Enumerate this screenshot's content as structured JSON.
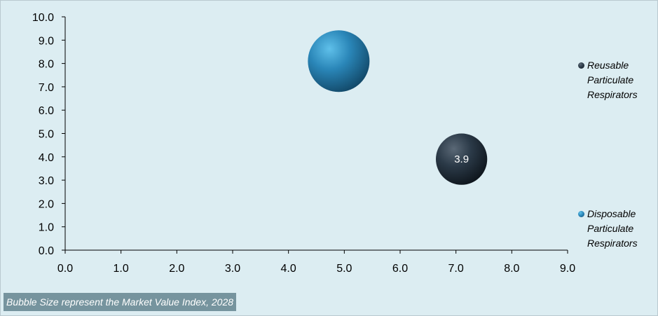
{
  "chart_data": {
    "type": "bubble",
    "title": "",
    "xlabel": "",
    "ylabel": "",
    "xlim": [
      0,
      9
    ],
    "ylim": [
      0,
      10
    ],
    "x_ticks": [
      "0.0",
      "1.0",
      "2.0",
      "3.0",
      "4.0",
      "5.0",
      "6.0",
      "7.0",
      "8.0",
      "9.0"
    ],
    "y_ticks": [
      "0.0",
      "1.0",
      "2.0",
      "3.0",
      "4.0",
      "5.0",
      "6.0",
      "7.0",
      "8.0",
      "9.0",
      "10.0"
    ],
    "grid": false,
    "legend_position": "right",
    "series": [
      {
        "name": "Reusable Particulate Respirators",
        "color": "#2b3a48",
        "points": [
          {
            "x": 7.1,
            "y": 3.9,
            "size": 3.9,
            "label": "3.9"
          }
        ]
      },
      {
        "name": "Disposable Particulate Respirators",
        "color": "#2a86b8",
        "points": [
          {
            "x": 4.9,
            "y": 8.1,
            "size": 8.1,
            "label": ""
          }
        ]
      }
    ]
  },
  "footnote": "Bubble Size represent the Market Value Index, 2028"
}
